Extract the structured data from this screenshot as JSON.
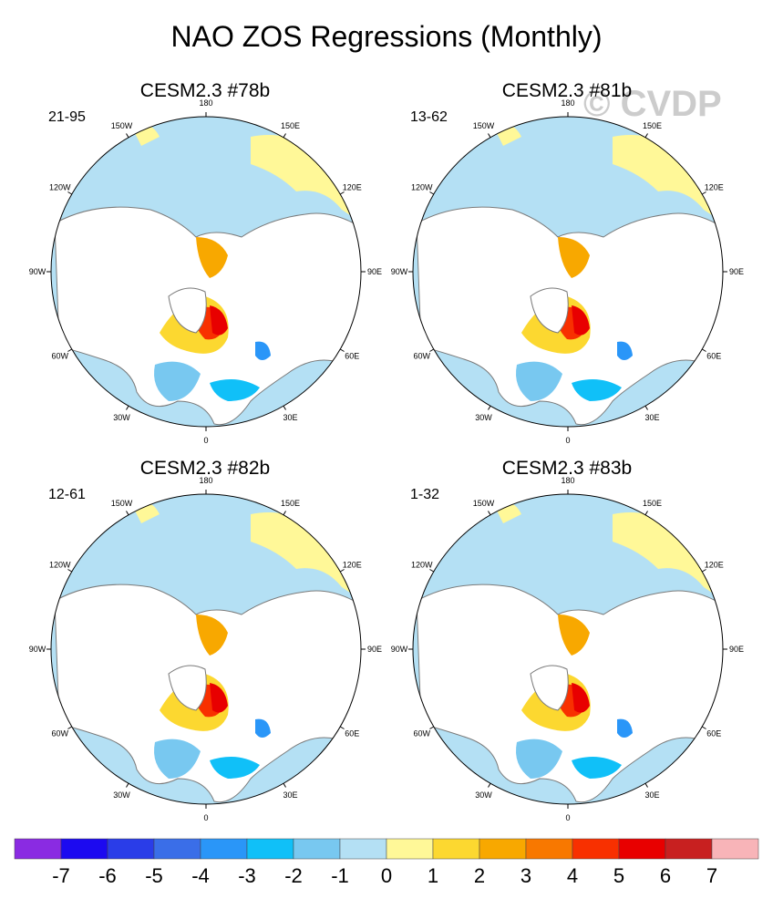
{
  "figure_title": "NAO ZOS Regressions (Monthly)",
  "watermark": "© CVDP",
  "chart_data": {
    "type": "polar_map",
    "title": "NAO ZOS Regressions (Monthly)",
    "projection": "Northern Hemisphere polar stereographic",
    "longitude_labels": [
      "180",
      "150E",
      "120E",
      "90E",
      "60E",
      "30E",
      "0",
      "30W",
      "60W",
      "90W",
      "120W",
      "150W"
    ],
    "colorbar": {
      "ticks": [
        "-7",
        "-6",
        "-5",
        "-4",
        "-3",
        "-2",
        "-1",
        "0",
        "1",
        "2",
        "3",
        "4",
        "5",
        "6",
        "7"
      ],
      "colors": [
        "#8a2be2",
        "#1c0af0",
        "#2a3de8",
        "#3a6ee8",
        "#2a96f8",
        "#10c0f8",
        "#78c8f0",
        "#b4e0f4",
        "#fff898",
        "#fcd830",
        "#f8a800",
        "#f87800",
        "#f83000",
        "#e80000",
        "#c82020",
        "#f8b4b8"
      ]
    },
    "panels": [
      {
        "name": "CESM2.3 #78b",
        "years": "21-95",
        "north_pacific": "#b4e0f4",
        "arctic_max": "#e80000"
      },
      {
        "name": "CESM2.3 #81b",
        "years": "13-62",
        "north_pacific": "#b4e0f4",
        "arctic_max": "#e80000"
      },
      {
        "name": "CESM2.3 #82b",
        "years": "12-61",
        "north_pacific": "#b4e0f4",
        "arctic_max": "#e80000"
      },
      {
        "name": "CESM2.3 #83b",
        "years": "1-32",
        "north_pacific": "#b4e0f4",
        "arctic_max": "#e80000"
      }
    ]
  }
}
